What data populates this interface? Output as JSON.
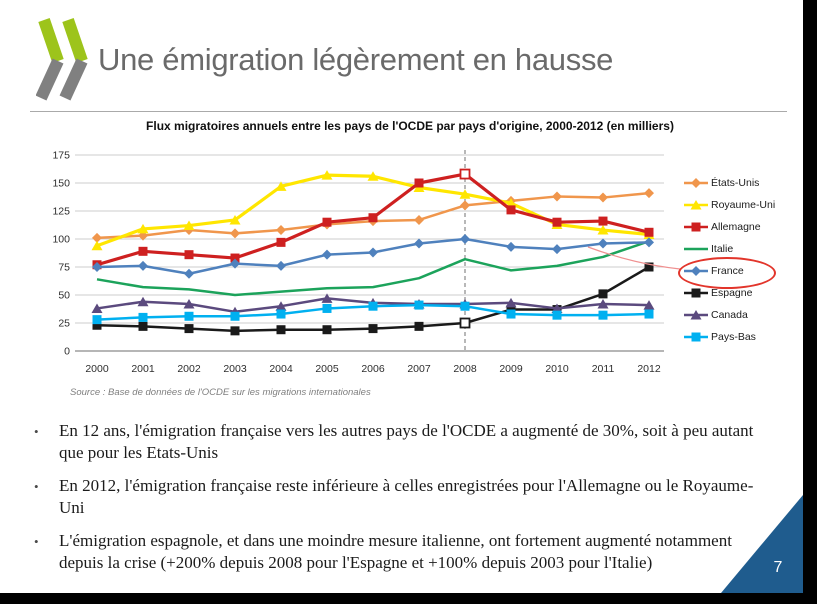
{
  "slide": {
    "title": "Une émigration légèrement en hausse",
    "bullet_glyph": "•",
    "bullets": [
      "En 12 ans, l'émigration française vers les autres pays de l'OCDE a augmenté de 30%, soit à peu autant que pour les Etats-Unis",
      "En 2012, l'émigration française reste inférieure à celles enregistrées pour l'Allemagne ou le Royaume-Uni",
      "L'émigration espagnole, et dans une moindre mesure italienne, ont fortement augmenté notamment depuis la crise (+200% depuis 2008 pour l'Espagne et +100% depuis 2003 pour l'Italie)"
    ],
    "source": "Source : Base de données de l'OCDE sur les migrations internationales",
    "page_number": "7",
    "accent_color": "#1f5c8e",
    "logo_colors": {
      "green": "#9dc41b",
      "gray": "#808080"
    }
  },
  "chart_data": {
    "type": "line",
    "title": "Flux migratoires annuels entre les pays de l'OCDE par pays d'origine, 2000-2012 (en milliers)",
    "x": [
      2000,
      2001,
      2002,
      2003,
      2004,
      2005,
      2006,
      2007,
      2008,
      2009,
      2010,
      2011,
      2012
    ],
    "ylim": [
      0,
      175
    ],
    "yticks": [
      0,
      25,
      50,
      75,
      100,
      125,
      150,
      175
    ],
    "grid": true,
    "legend_position": "right",
    "crisis_line_year": 2008,
    "highlighted_series": "France",
    "highlight_color": "#e2352b",
    "series": [
      {
        "name": "États-Unis",
        "color": "#f0964c",
        "marker": "diamond",
        "values": [
          101,
          103,
          108,
          105,
          108,
          113,
          116,
          117,
          130,
          134,
          138,
          137,
          141
        ]
      },
      {
        "name": "Royaume-Uni",
        "color": "#ffe600",
        "marker": "triangle",
        "values": [
          94,
          109,
          112,
          117,
          147,
          157,
          156,
          146,
          140,
          132,
          113,
          108,
          104
        ]
      },
      {
        "name": "Allemagne",
        "color": "#ce2020",
        "marker": "square",
        "open_marker_year": 2008,
        "values": [
          77,
          89,
          86,
          83,
          97,
          115,
          119,
          150,
          158,
          126,
          115,
          116,
          106
        ]
      },
      {
        "name": "Italie",
        "color": "#1ca35b",
        "marker": "none",
        "values": [
          64,
          57,
          55,
          50,
          53,
          56,
          57,
          65,
          82,
          72,
          76,
          84,
          98
        ]
      },
      {
        "name": "France",
        "color": "#4f81bd",
        "marker": "diamond",
        "values": [
          75,
          76,
          69,
          78,
          76,
          86,
          88,
          96,
          100,
          93,
          91,
          96,
          97
        ]
      },
      {
        "name": "Espagne",
        "color": "#1a1a1a",
        "marker": "square",
        "open_marker_year": 2008,
        "values": [
          23,
          22,
          20,
          18,
          19,
          19,
          20,
          22,
          25,
          37,
          37,
          51,
          75
        ]
      },
      {
        "name": "Canada",
        "color": "#5b4a7e",
        "marker": "triangle",
        "values": [
          38,
          44,
          42,
          35,
          40,
          47,
          43,
          42,
          42,
          43,
          38,
          42,
          41
        ]
      },
      {
        "name": "Pays-Bas",
        "color": "#00b0f0",
        "marker": "square",
        "values": [
          28,
          30,
          31,
          31,
          33,
          38,
          40,
          41,
          40,
          33,
          32,
          32,
          33
        ]
      }
    ]
  }
}
